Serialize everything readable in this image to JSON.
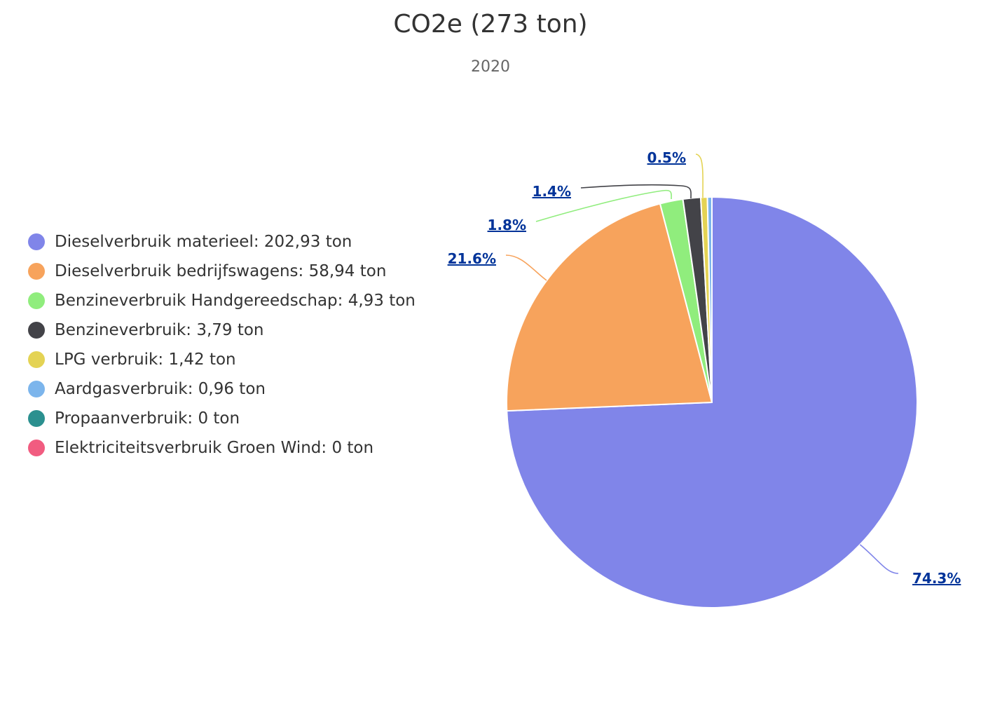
{
  "chart_data": {
    "type": "pie",
    "title": "CO2e (273 ton)",
    "subtitle": "2020",
    "series": [
      {
        "name": "Dieselverbruik materieel",
        "value": 202.93,
        "value_text": "202,93",
        "unit": "ton",
        "percent_label": "74.3%",
        "color": "#8085e9"
      },
      {
        "name": "Dieselverbruik bedrijfswagens",
        "value": 58.94,
        "value_text": "58,94",
        "unit": "ton",
        "percent_label": "21.6%",
        "color": "#f7a35c"
      },
      {
        "name": "Benzineverbruik Handgereedschap",
        "value": 4.93,
        "value_text": "4,93",
        "unit": "ton",
        "percent_label": "1.8%",
        "color": "#90ed7d"
      },
      {
        "name": "Benzineverbruik",
        "value": 3.79,
        "value_text": "3,79",
        "unit": "ton",
        "percent_label": "1.4%",
        "color": "#434348"
      },
      {
        "name": "LPG verbruik",
        "value": 1.42,
        "value_text": "1,42",
        "unit": "ton",
        "percent_label": "0.5%",
        "color": "#e4d354"
      },
      {
        "name": "Aardgasverbruik",
        "value": 0.96,
        "value_text": "0,96",
        "unit": "ton",
        "percent_label": "",
        "color": "#7cb5ec"
      },
      {
        "name": "Propaanverbruik",
        "value": 0,
        "value_text": "0",
        "unit": "ton",
        "percent_label": "",
        "color": "#2b908f"
      },
      {
        "name": "Elektriciteitsverbruik Groen Wind",
        "value": 0,
        "value_text": "0",
        "unit": "ton",
        "percent_label": "",
        "color": "#f15c80"
      }
    ],
    "legend": {
      "position": "left"
    }
  }
}
